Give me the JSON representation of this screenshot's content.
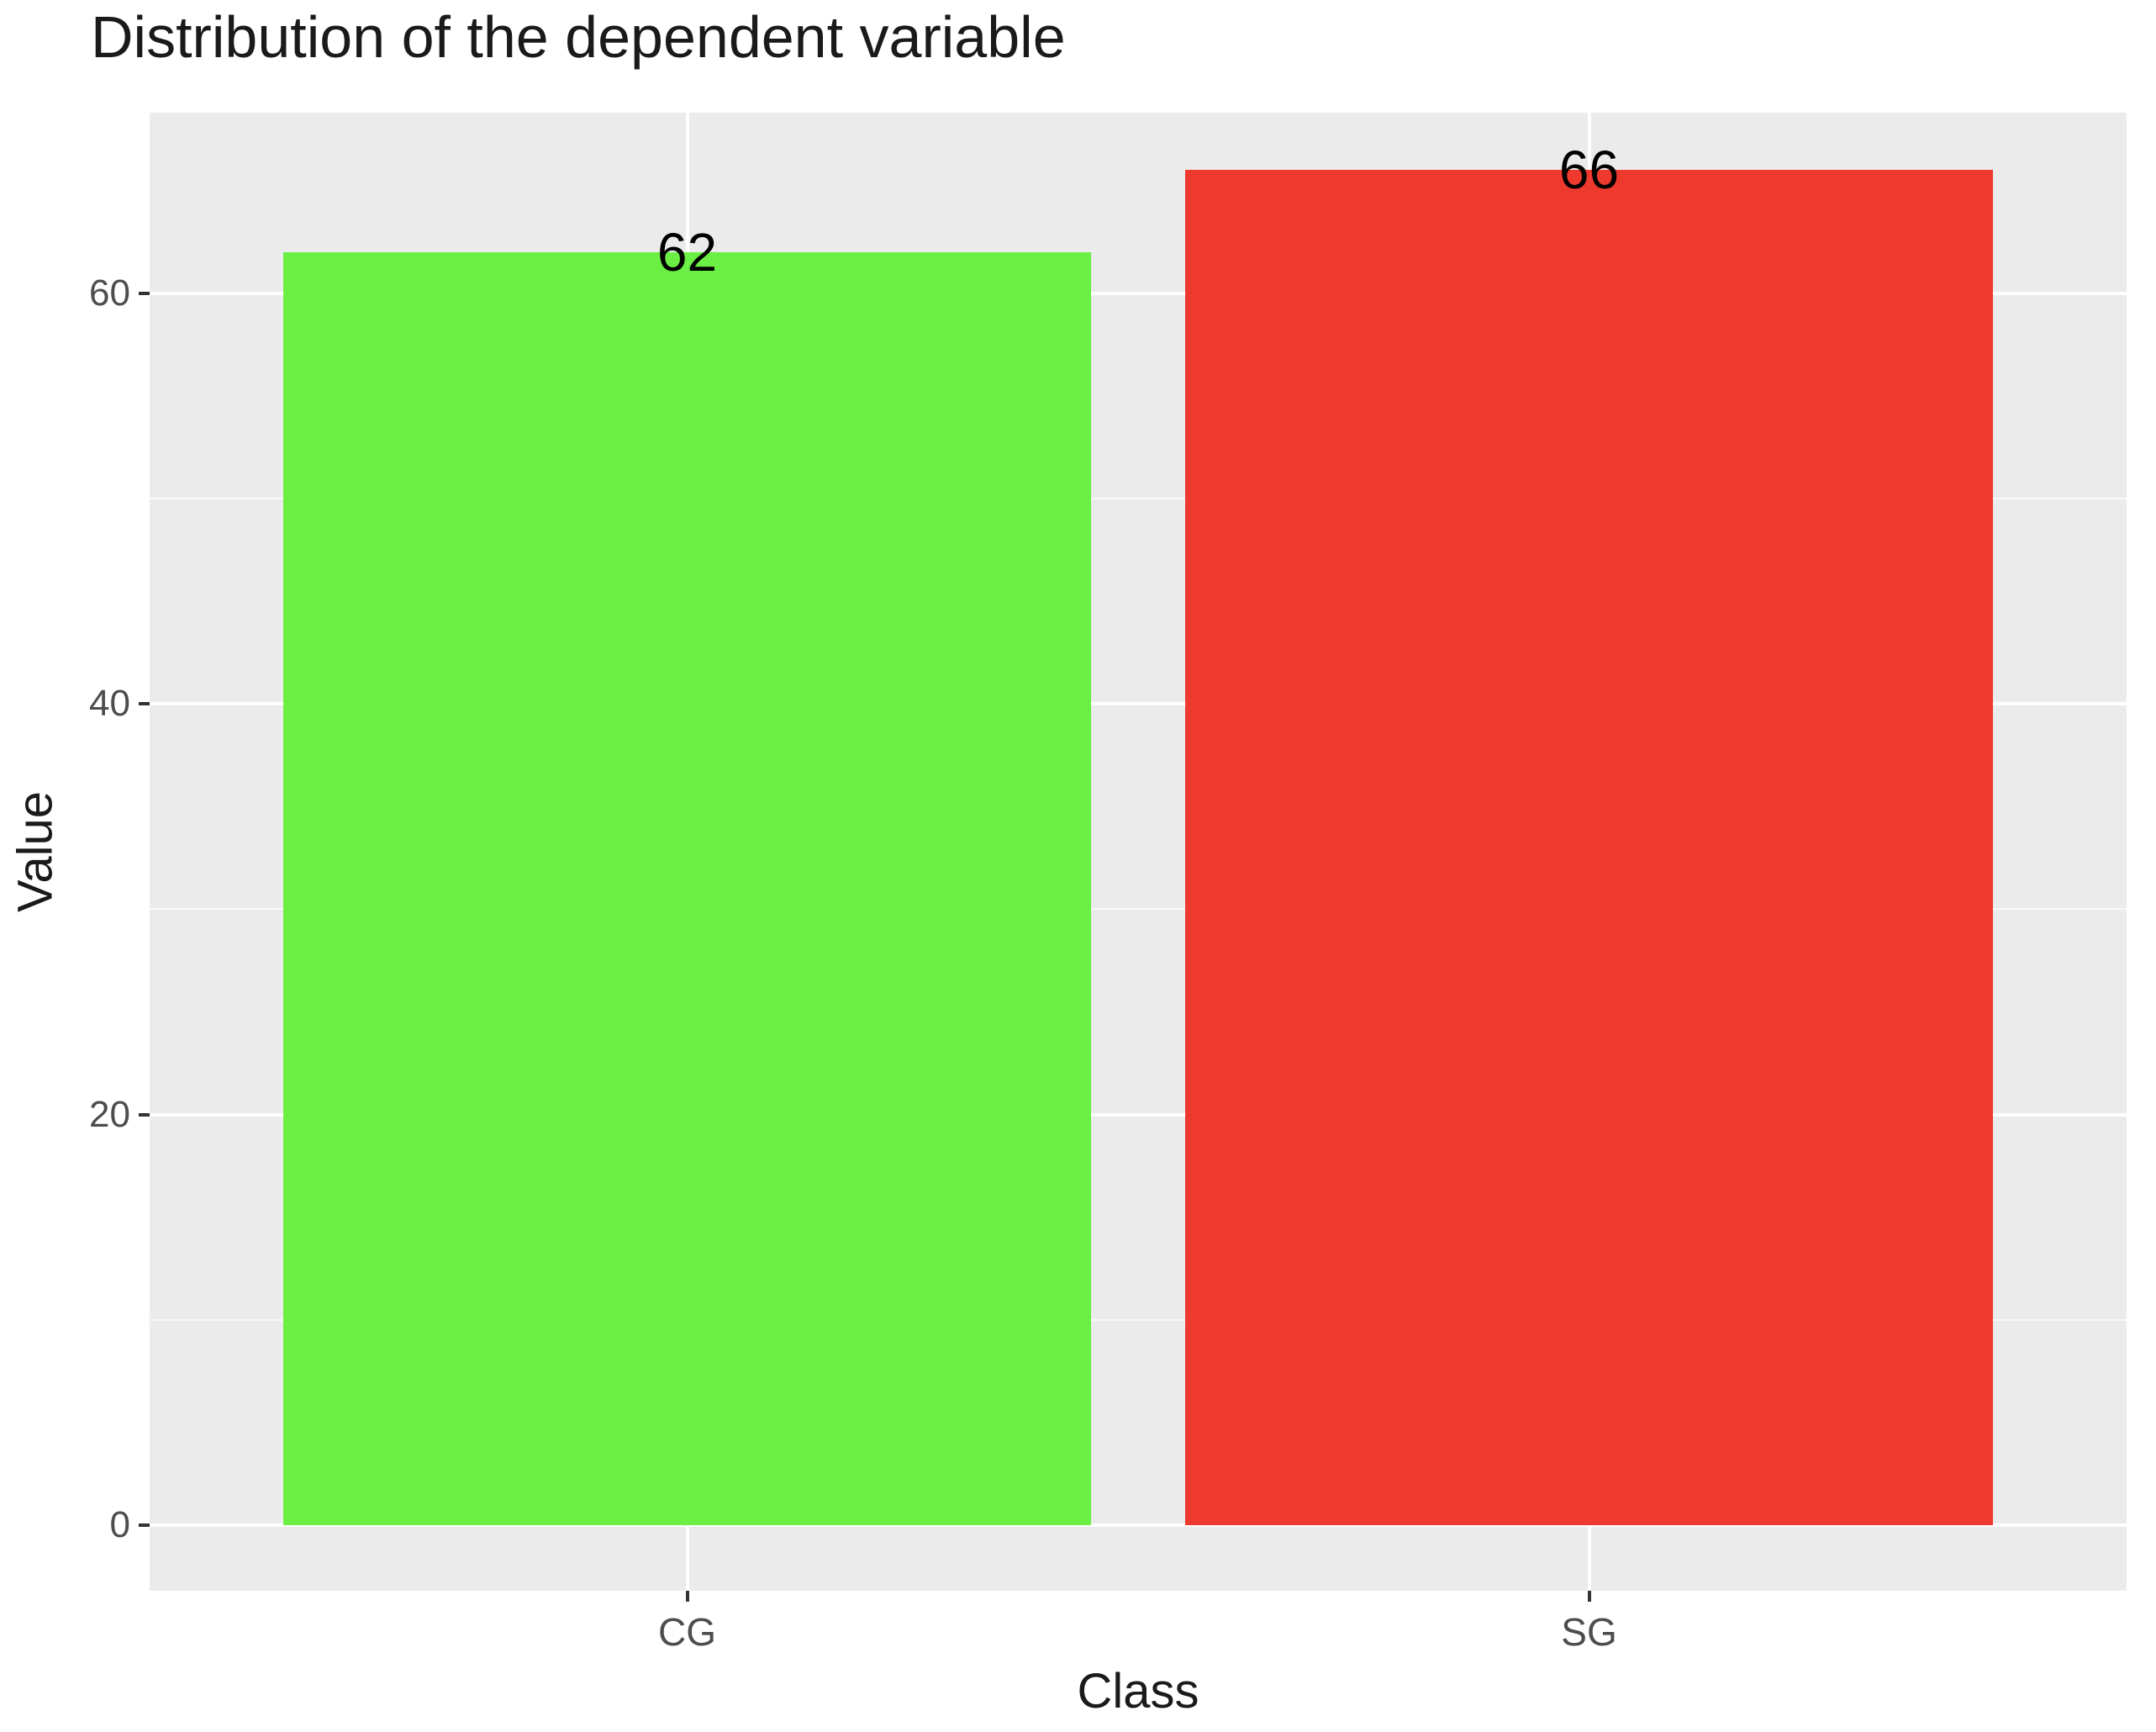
{
  "title": "Distribution of the dependent variable",
  "chart_data": {
    "type": "bar",
    "title": "Distribution of the dependent variable",
    "xlabel": "Class",
    "ylabel": "Value",
    "categories": [
      "CG",
      "SG"
    ],
    "values": [
      62,
      66
    ],
    "bar_labels": [
      "62",
      "66"
    ],
    "bar_colors": [
      "#6bef44",
      "#ee392e"
    ],
    "yticks": [
      0,
      20,
      40,
      60
    ],
    "yticks_minor": [
      10,
      30,
      50
    ],
    "ylim": [
      0,
      66
    ],
    "ylim_display": [
      -3.2,
      68.8
    ],
    "grid": true,
    "legend": false,
    "panel_bg": "#ebebeb",
    "grid_color": "#ffffff",
    "tick_label_color": "#4d4d4d",
    "axis_title_color": "#1a1a1a"
  }
}
